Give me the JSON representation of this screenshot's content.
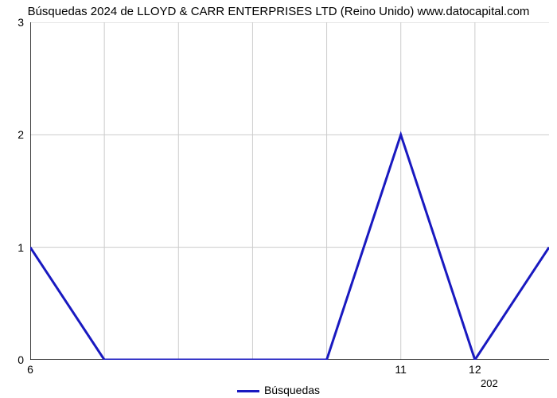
{
  "title": "Búsquedas 2024 de LLOYD & CARR ENTERPRISES LTD (Reino Unido) www.datocapital.com",
  "chart": {
    "type": "line",
    "background_color": "#ffffff",
    "grid_color": "#cccccc",
    "axis_color": "#000000",
    "line_color": "#1919c0",
    "line_width": 3,
    "title_fontsize": 15,
    "label_fontsize": 14,
    "x_domain": [
      6,
      13
    ],
    "y_domain": [
      0,
      3
    ],
    "y_ticks": [
      0,
      1,
      2,
      3
    ],
    "x_ticks": [
      6,
      7,
      8,
      9,
      10,
      11,
      12
    ],
    "x_tick_labels_show": [
      "6",
      "",
      "",
      "",
      "",
      "11",
      "12"
    ],
    "x_sub_label": "202",
    "data_points": [
      {
        "x": 6.0,
        "y": 1.0
      },
      {
        "x": 7.0,
        "y": 0.0
      },
      {
        "x": 10.0,
        "y": 0.0
      },
      {
        "x": 11.0,
        "y": 2.0
      },
      {
        "x": 12.0,
        "y": 0.0
      },
      {
        "x": 13.0,
        "y": 1.0
      }
    ]
  },
  "legend": {
    "label": "Búsquedas",
    "swatch_color": "#1919c0"
  }
}
